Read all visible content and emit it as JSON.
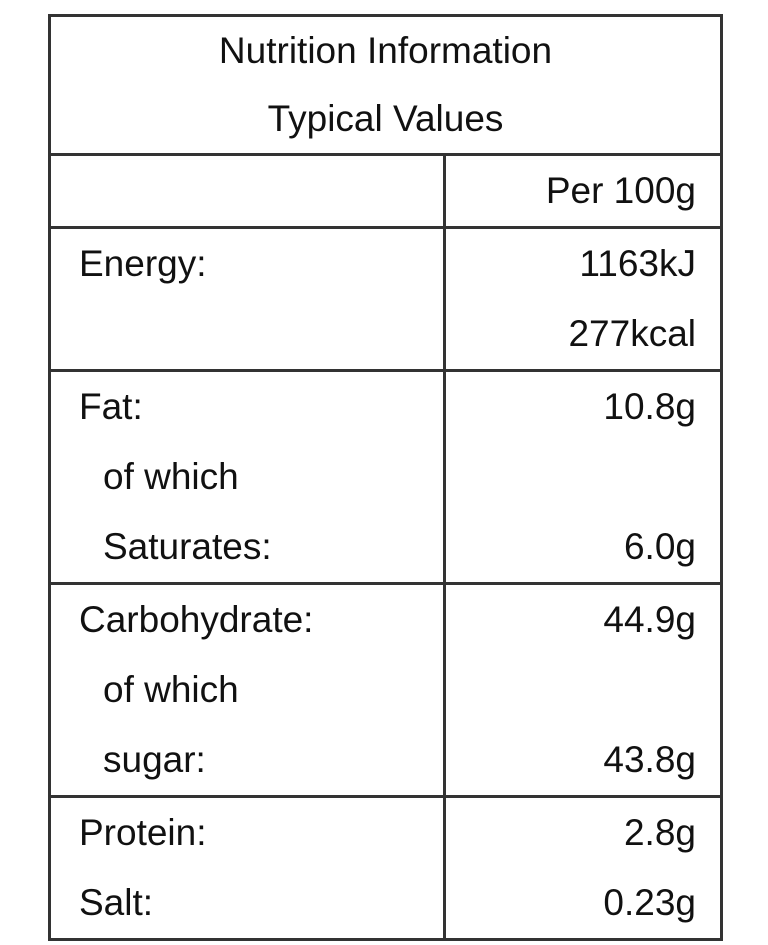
{
  "title": [
    "Nutrition Information",
    "Typical Values"
  ],
  "header": {
    "column": "Per 100g"
  },
  "groups": [
    {
      "lines": [
        {
          "label": "Energy:",
          "value": "1163kJ"
        },
        {
          "value": "277kcal"
        }
      ]
    },
    {
      "lines": [
        {
          "label": "Fat:",
          "value": "10.8g",
          "sub": [
            {
              "label": "of which"
            },
            {
              "label": "Saturates:",
              "value": "6.0g"
            }
          ]
        }
      ]
    },
    {
      "lines": [
        {
          "label": "Carbohydrate:",
          "value": "44.9g",
          "sub": [
            {
              "label": "of which"
            },
            {
              "label": "sugar:",
              "value": "43.8g"
            }
          ]
        }
      ]
    },
    {
      "lines": [
        {
          "label": "Protein:",
          "value": "2.8g"
        },
        {
          "label": "Salt:",
          "value": "0.23g"
        }
      ]
    }
  ]
}
